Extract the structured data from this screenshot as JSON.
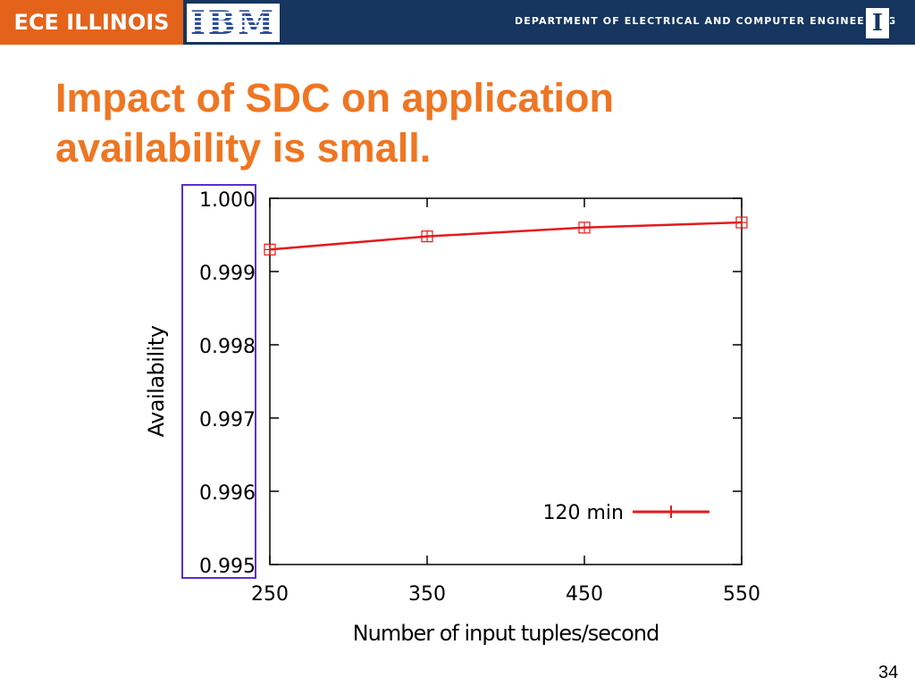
{
  "header": {
    "left_logo_text": "ECE ILLINOIS",
    "partner_logo_text": "IBM",
    "department_text": "DEPARTMENT OF ELECTRICAL AND COMPUTER ENGINEERING",
    "right_logo_text": "I",
    "colors": {
      "bar": "#16355f",
      "ece_box": "#e3631b"
    }
  },
  "slide": {
    "title_line1": "Impact of SDC on application",
    "title_line2": "availability is small.",
    "title_color": "#ee7623",
    "page_number": "34"
  },
  "highlight_color": "#5b2fd0",
  "chart_data": {
    "type": "line",
    "xlabel": "Number of input tuples/second",
    "ylabel": "Availability",
    "xlim": [
      250,
      550
    ],
    "ylim": [
      0.995,
      1.0
    ],
    "x_ticks": [
      "250",
      "350",
      "450",
      "550"
    ],
    "y_ticks": [
      "1.000",
      "0.999",
      "0.998",
      "0.997",
      "0.996",
      "0.995"
    ],
    "series": [
      {
        "name": "120 min",
        "color": "#e41a1c",
        "marker": "square-plus",
        "x": [
          250,
          350,
          450,
          550
        ],
        "y": [
          0.9993,
          0.99948,
          0.9996,
          0.99967
        ]
      }
    ],
    "legend_position": "bottom-right",
    "grid": false
  }
}
